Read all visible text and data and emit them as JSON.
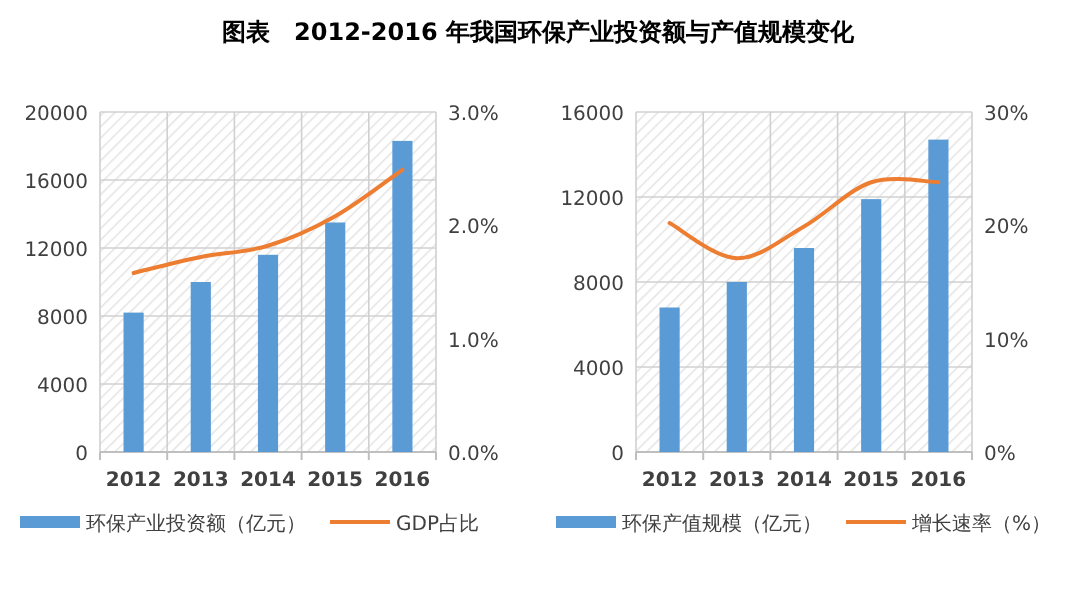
{
  "chart_data": [
    {
      "type": "bar",
      "title": "图表　2012-2016 年我国环保产业投资额与产值规模变化",
      "categories": [
        "2012",
        "2013",
        "2014",
        "2015",
        "2016"
      ],
      "series": [
        {
          "name": "环保产业投资额（亿元）",
          "color": "#5b9bd5",
          "values": [
            8200,
            10000,
            11600,
            13500,
            18300
          ]
        },
        {
          "name": "GDP占比",
          "type": "line",
          "axis": "y2",
          "color": "#ed7d31",
          "values": [
            1.58,
            1.72,
            1.82,
            2.08,
            2.49
          ]
        }
      ],
      "ylim": [
        0,
        20000
      ],
      "yticks": [
        0,
        4000,
        8000,
        12000,
        16000,
        20000
      ],
      "y2lim": [
        0,
        3
      ],
      "y2ticks": [
        {
          "value": 0,
          "label": "0.0%"
        },
        {
          "value": 1,
          "label": "1.0%"
        },
        {
          "value": 2,
          "label": "2.0%"
        },
        {
          "value": 3,
          "label": "3.0%"
        }
      ],
      "grid": true,
      "legend": "bottom"
    },
    {
      "type": "bar",
      "categories": [
        "2012",
        "2013",
        "2014",
        "2015",
        "2016"
      ],
      "series": [
        {
          "name": "环保产值规模（亿元）",
          "color": "#5b9bd5",
          "values": [
            6800,
            8000,
            9600,
            11900,
            14700
          ]
        },
        {
          "name": "增长速率（%）",
          "type": "line",
          "axis": "y2",
          "color": "#ed7d31",
          "values": [
            20.2,
            17.1,
            19.9,
            23.8,
            23.8
          ]
        }
      ],
      "ylim": [
        0,
        16000
      ],
      "yticks": [
        0,
        4000,
        8000,
        12000,
        16000
      ],
      "y2lim": [
        0,
        30
      ],
      "y2ticks": [
        {
          "value": 0,
          "label": "0%"
        },
        {
          "value": 10,
          "label": "10%"
        },
        {
          "value": 20,
          "label": "20%"
        },
        {
          "value": 30,
          "label": "30%"
        }
      ],
      "grid": true,
      "legend": "bottom"
    }
  ]
}
